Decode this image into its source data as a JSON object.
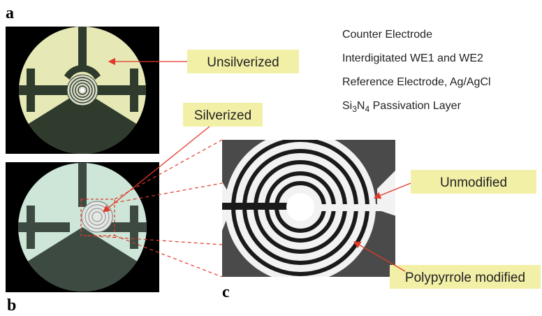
{
  "panel_labels": [
    "a",
    "b",
    "c"
  ],
  "callouts": [
    "Unsilverized",
    "Silverized",
    "Unmodified",
    "Polypyrrole modified"
  ],
  "legend": [
    "Counter Electrode",
    "Interdigitated WE1 and WE2",
    "Reference Electrode, Ag/AgCl"
  ],
  "passivation_label": [
    "Si",
    "3",
    "N",
    "4",
    " Passivation Layer"
  ]
}
